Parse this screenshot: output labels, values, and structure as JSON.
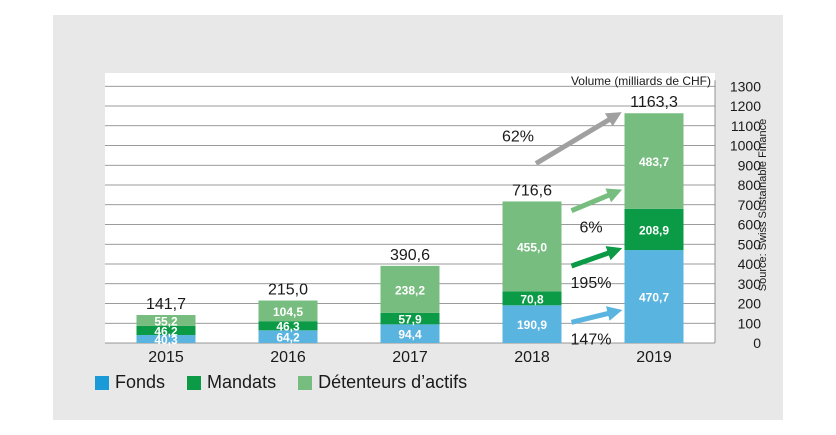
{
  "chart_data": {
    "type": "bar",
    "stacked": true,
    "categories": [
      "2015",
      "2016",
      "2017",
      "2018",
      "2019"
    ],
    "series": [
      {
        "name": "Fonds",
        "color": "#5ab4e0",
        "values": [
          40.3,
          64.2,
          94.4,
          190.9,
          470.7
        ]
      },
      {
        "name": "Mandats",
        "color": "#0b9a45",
        "values": [
          46.2,
          46.3,
          57.9,
          70.8,
          208.9
        ]
      },
      {
        "name": "Détenteurs d’actifs",
        "color": "#77bd80",
        "values": [
          55.2,
          104.5,
          238.2,
          455.0,
          483.7
        ]
      }
    ],
    "value_labels": [
      [
        "40,3",
        "46,2",
        "55,2"
      ],
      [
        "64,2",
        "46,3",
        "104,5"
      ],
      [
        "94,4",
        "57,9",
        "238,2"
      ],
      [
        "190,9",
        "70,8",
        "455,0"
      ],
      [
        "470,7",
        "208,9",
        "483,7"
      ]
    ],
    "totals": [
      141.7,
      215.0,
      390.6,
      716.6,
      1163.3
    ],
    "total_labels": [
      "141,7",
      "215,0",
      "390,6",
      "716,6",
      "1163,3"
    ],
    "ylabel": "Volume (milliards de CHF)",
    "ylim": [
      0,
      1300
    ],
    "yticks": [
      0,
      100,
      200,
      300,
      400,
      500,
      600,
      700,
      800,
      900,
      1000,
      1100,
      1200,
      1300
    ],
    "grid": true,
    "source": "Source: Swiss Sustainable Finance",
    "growth_annotations": [
      {
        "label": "62%",
        "series": "total",
        "color": "#a0a0a0"
      },
      {
        "label": "6%",
        "series": "Détenteurs d’actifs",
        "color": "#77bd80"
      },
      {
        "label": "195%",
        "series": "Mandats",
        "color": "#0b9a45"
      },
      {
        "label": "147%",
        "series": "Fonds",
        "color": "#5ab4e0"
      }
    ],
    "legend_position": "bottom-left"
  }
}
